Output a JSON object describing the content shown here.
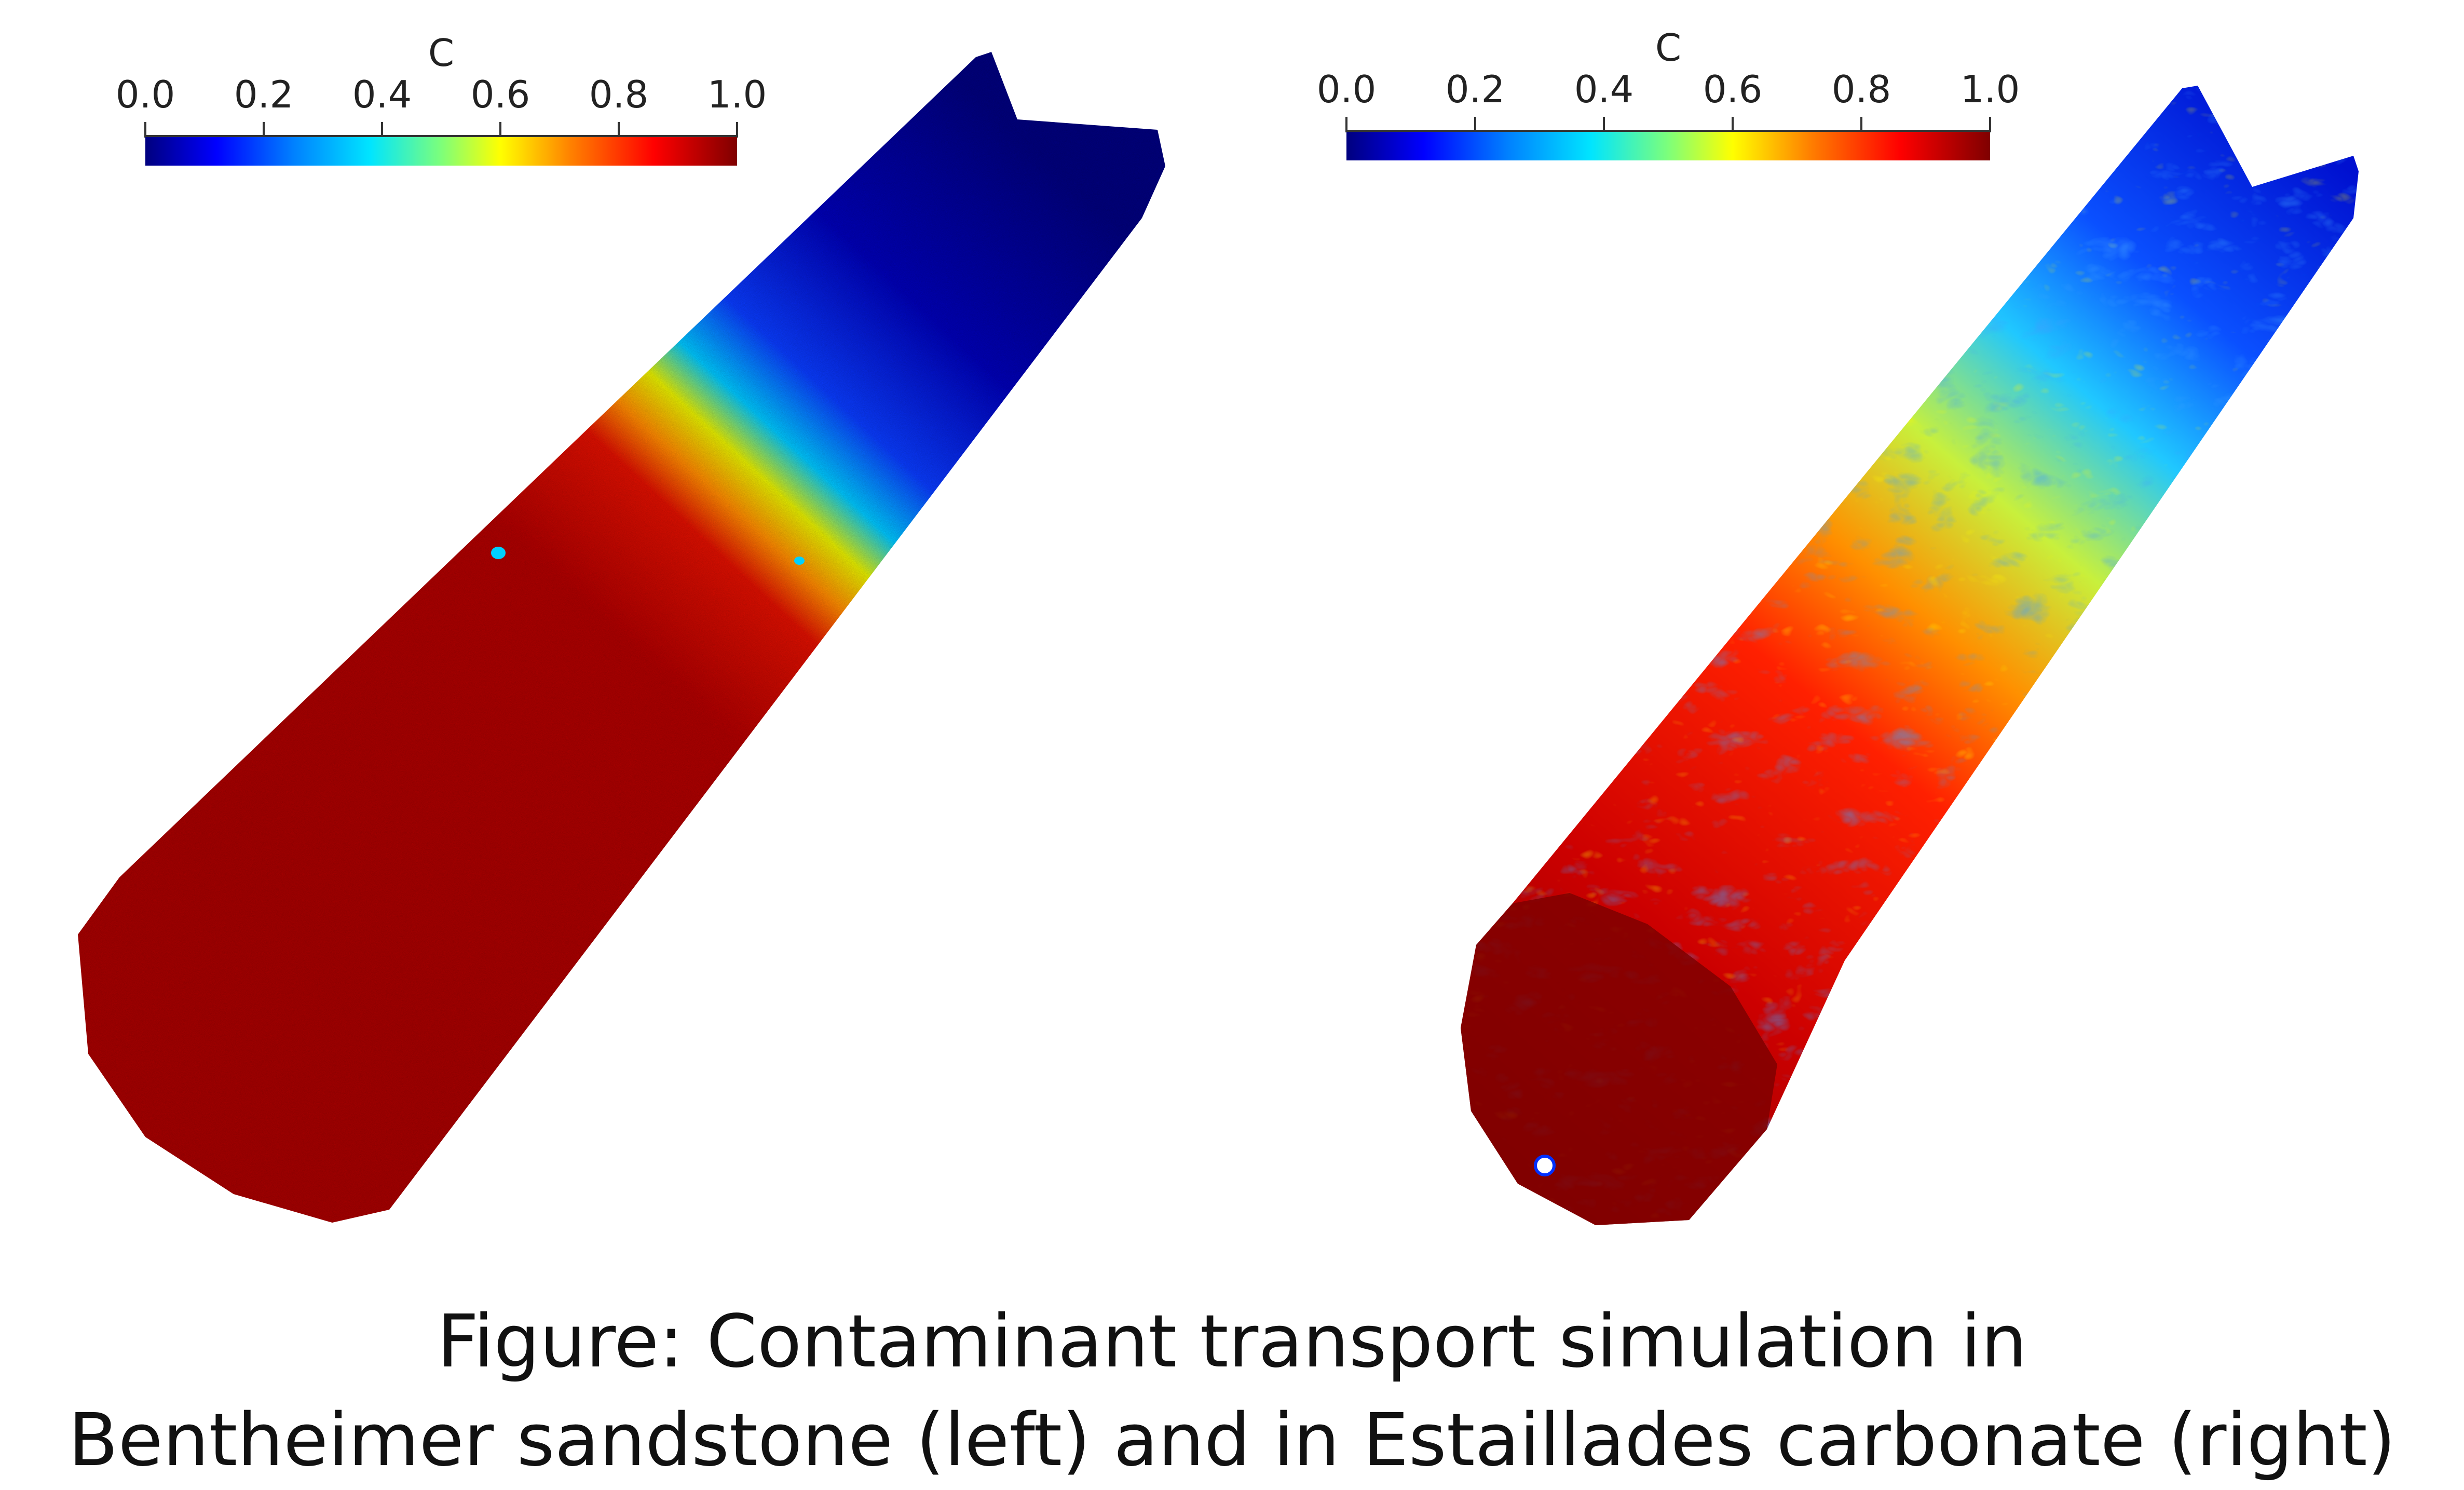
{
  "panels": [
    {
      "colorbar": {
        "title": "C",
        "ticks": [
          "0.0",
          "0.2",
          "0.4",
          "0.6",
          "0.8",
          "1.0"
        ]
      }
    },
    {
      "colorbar": {
        "title": "C",
        "ticks": [
          "0.0",
          "0.2",
          "0.4",
          "0.6",
          "0.8",
          "1.0"
        ]
      }
    }
  ],
  "colormap": {
    "stops": [
      "#00007f",
      "#0000ff",
      "#0080ff",
      "#00e5ff",
      "#7dff7a",
      "#ffff00",
      "#ff8000",
      "#ff0000",
      "#7f0000"
    ]
  },
  "caption": {
    "line1": "Figure: Contaminant transport simulation in",
    "line2": "Bentheimer sandstone (left) and in Estaillades carbonate (right)"
  }
}
